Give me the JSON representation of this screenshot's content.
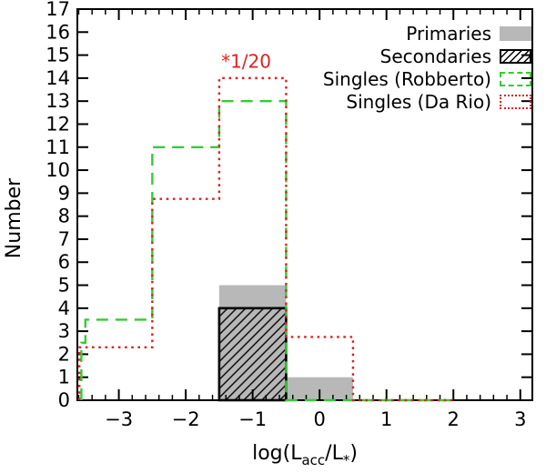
{
  "chart_data": {
    "type": "histogram",
    "title": "",
    "ylabel": "Number",
    "xlabel_parts": [
      {
        "text": "log(L"
      },
      {
        "text": "acc",
        "sub": true
      },
      {
        "text": "/L"
      },
      {
        "text": "*",
        "sub": true
      },
      {
        "text": ")"
      }
    ],
    "xlim": [
      -3.62,
      3.18
    ],
    "ylim": [
      0,
      17
    ],
    "x_ticks": [
      {
        "value": -3,
        "label": "−3"
      },
      {
        "value": -2,
        "label": "−2"
      },
      {
        "value": -1,
        "label": "−1"
      },
      {
        "value": 0,
        "label": "0"
      },
      {
        "value": 1,
        "label": "1"
      },
      {
        "value": 2,
        "label": "2"
      },
      {
        "value": 3,
        "label": "3"
      }
    ],
    "y_ticks": [
      0,
      1,
      2,
      3,
      4,
      5,
      6,
      7,
      8,
      9,
      10,
      11,
      12,
      13,
      14,
      15,
      16,
      17
    ],
    "x_minor_step": 0.2,
    "grid": false,
    "legend_position": "top-right",
    "annotation": {
      "text": "*1/20",
      "x": -1.47,
      "y": 14.45,
      "color": "#dd2222"
    },
    "series": [
      {
        "name": "Primaries",
        "style": "filled",
        "color": "#b8b8b8",
        "bin_edges": [
          -1.5,
          -0.5,
          0.5
        ],
        "values": [
          5,
          1
        ]
      },
      {
        "name": "Secondaries",
        "style": "hatched",
        "color": "#000000",
        "bin_edges": [
          -1.5,
          -0.5
        ],
        "values": [
          4
        ]
      },
      {
        "name": "Singles (Robberto)",
        "style": "dashed",
        "color": "#33cc33",
        "bin_edges": [
          -3.56,
          -3.5,
          -2.5,
          -1.5,
          -0.5,
          2.0
        ],
        "values": [
          2.5,
          3.5,
          11,
          13,
          0
        ]
      },
      {
        "name": "Singles (Da Rio)",
        "style": "dotted",
        "color": "#dd2222",
        "bin_edges": [
          -3.59,
          -2.5,
          -1.5,
          -0.5,
          0.5,
          2.0
        ],
        "values": [
          2.3,
          8.75,
          14,
          2.75,
          0
        ]
      }
    ]
  }
}
